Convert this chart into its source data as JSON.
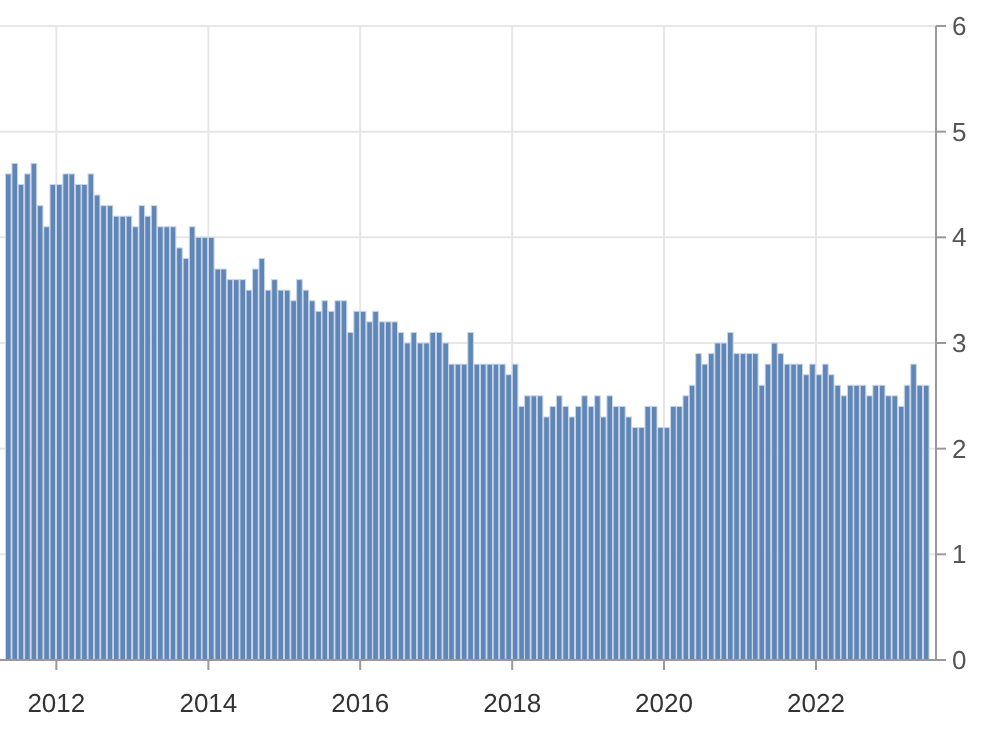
{
  "chart_data": {
    "type": "bar",
    "x": [
      "2011-05",
      "2011-06",
      "2011-07",
      "2011-08",
      "2011-09",
      "2011-10",
      "2011-11",
      "2011-12",
      "2012-01",
      "2012-02",
      "2012-03",
      "2012-04",
      "2012-05",
      "2012-06",
      "2012-07",
      "2012-08",
      "2012-09",
      "2012-10",
      "2012-11",
      "2012-12",
      "2013-01",
      "2013-02",
      "2013-03",
      "2013-04",
      "2013-05",
      "2013-06",
      "2013-07",
      "2013-08",
      "2013-09",
      "2013-10",
      "2013-11",
      "2013-12",
      "2014-01",
      "2014-02",
      "2014-03",
      "2014-04",
      "2014-05",
      "2014-06",
      "2014-07",
      "2014-08",
      "2014-09",
      "2014-10",
      "2014-11",
      "2014-12",
      "2015-01",
      "2015-02",
      "2015-03",
      "2015-04",
      "2015-05",
      "2015-06",
      "2015-07",
      "2015-08",
      "2015-09",
      "2015-10",
      "2015-11",
      "2015-12",
      "2016-01",
      "2016-02",
      "2016-03",
      "2016-04",
      "2016-05",
      "2016-06",
      "2016-07",
      "2016-08",
      "2016-09",
      "2016-10",
      "2016-11",
      "2016-12",
      "2017-01",
      "2017-02",
      "2017-03",
      "2017-04",
      "2017-05",
      "2017-06",
      "2017-07",
      "2017-08",
      "2017-09",
      "2017-10",
      "2017-11",
      "2017-12",
      "2018-01",
      "2018-02",
      "2018-03",
      "2018-04",
      "2018-05",
      "2018-06",
      "2018-07",
      "2018-08",
      "2018-09",
      "2018-10",
      "2018-11",
      "2018-12",
      "2019-01",
      "2019-02",
      "2019-03",
      "2019-04",
      "2019-05",
      "2019-06",
      "2019-07",
      "2019-08",
      "2019-09",
      "2019-10",
      "2019-11",
      "2019-12",
      "2020-01",
      "2020-02",
      "2020-03",
      "2020-04",
      "2020-05",
      "2020-06",
      "2020-07",
      "2020-08",
      "2020-09",
      "2020-10",
      "2020-11",
      "2020-12",
      "2021-01",
      "2021-02",
      "2021-03",
      "2021-04",
      "2021-05",
      "2021-06",
      "2021-07",
      "2021-08",
      "2021-09",
      "2021-10",
      "2021-11",
      "2021-12",
      "2022-01",
      "2022-02",
      "2022-03",
      "2022-04",
      "2022-05",
      "2022-06",
      "2022-07",
      "2022-08",
      "2022-09",
      "2022-10",
      "2022-11",
      "2022-12",
      "2023-01",
      "2023-02",
      "2023-03",
      "2023-04",
      "2023-05",
      "2023-06"
    ],
    "values": [
      4.6,
      4.7,
      4.5,
      4.6,
      4.7,
      4.3,
      4.1,
      4.5,
      4.5,
      4.6,
      4.6,
      4.5,
      4.5,
      4.6,
      4.4,
      4.3,
      4.3,
      4.2,
      4.2,
      4.2,
      4.1,
      4.3,
      4.2,
      4.3,
      4.1,
      4.1,
      4.1,
      3.9,
      3.8,
      4.1,
      4.0,
      4.0,
      4.0,
      3.7,
      3.7,
      3.6,
      3.6,
      3.6,
      3.5,
      3.7,
      3.8,
      3.5,
      3.6,
      3.5,
      3.5,
      3.4,
      3.6,
      3.5,
      3.4,
      3.3,
      3.4,
      3.3,
      3.4,
      3.4,
      3.1,
      3.3,
      3.3,
      3.2,
      3.3,
      3.2,
      3.2,
      3.2,
      3.1,
      3.0,
      3.1,
      3.0,
      3.0,
      3.1,
      3.1,
      3.0,
      2.8,
      2.8,
      2.8,
      3.1,
      2.8,
      2.8,
      2.8,
      2.8,
      2.8,
      2.7,
      2.8,
      2.4,
      2.5,
      2.5,
      2.5,
      2.3,
      2.4,
      2.5,
      2.4,
      2.3,
      2.4,
      2.5,
      2.4,
      2.5,
      2.3,
      2.5,
      2.4,
      2.4,
      2.3,
      2.2,
      2.2,
      2.4,
      2.4,
      2.2,
      2.2,
      2.4,
      2.4,
      2.5,
      2.6,
      2.9,
      2.8,
      2.9,
      3.0,
      3.0,
      3.1,
      2.9,
      2.9,
      2.9,
      2.9,
      2.6,
      2.8,
      3.0,
      2.9,
      2.8,
      2.8,
      2.8,
      2.7,
      2.8,
      2.7,
      2.8,
      2.7,
      2.6,
      2.5,
      2.6,
      2.6,
      2.6,
      2.5,
      2.6,
      2.6,
      2.5,
      2.5,
      2.4,
      2.6,
      2.8,
      2.6,
      2.6
    ],
    "color": "#5f86b6",
    "xlim": [
      "2011-04-05",
      "2023-08-01"
    ],
    "xticks": [
      "2012",
      "2014",
      "2016",
      "2018",
      "2020",
      "2022"
    ],
    "ylim": [
      0,
      6
    ],
    "yticks": [
      0,
      1,
      2,
      3,
      4,
      5,
      6
    ],
    "grid": true
  }
}
